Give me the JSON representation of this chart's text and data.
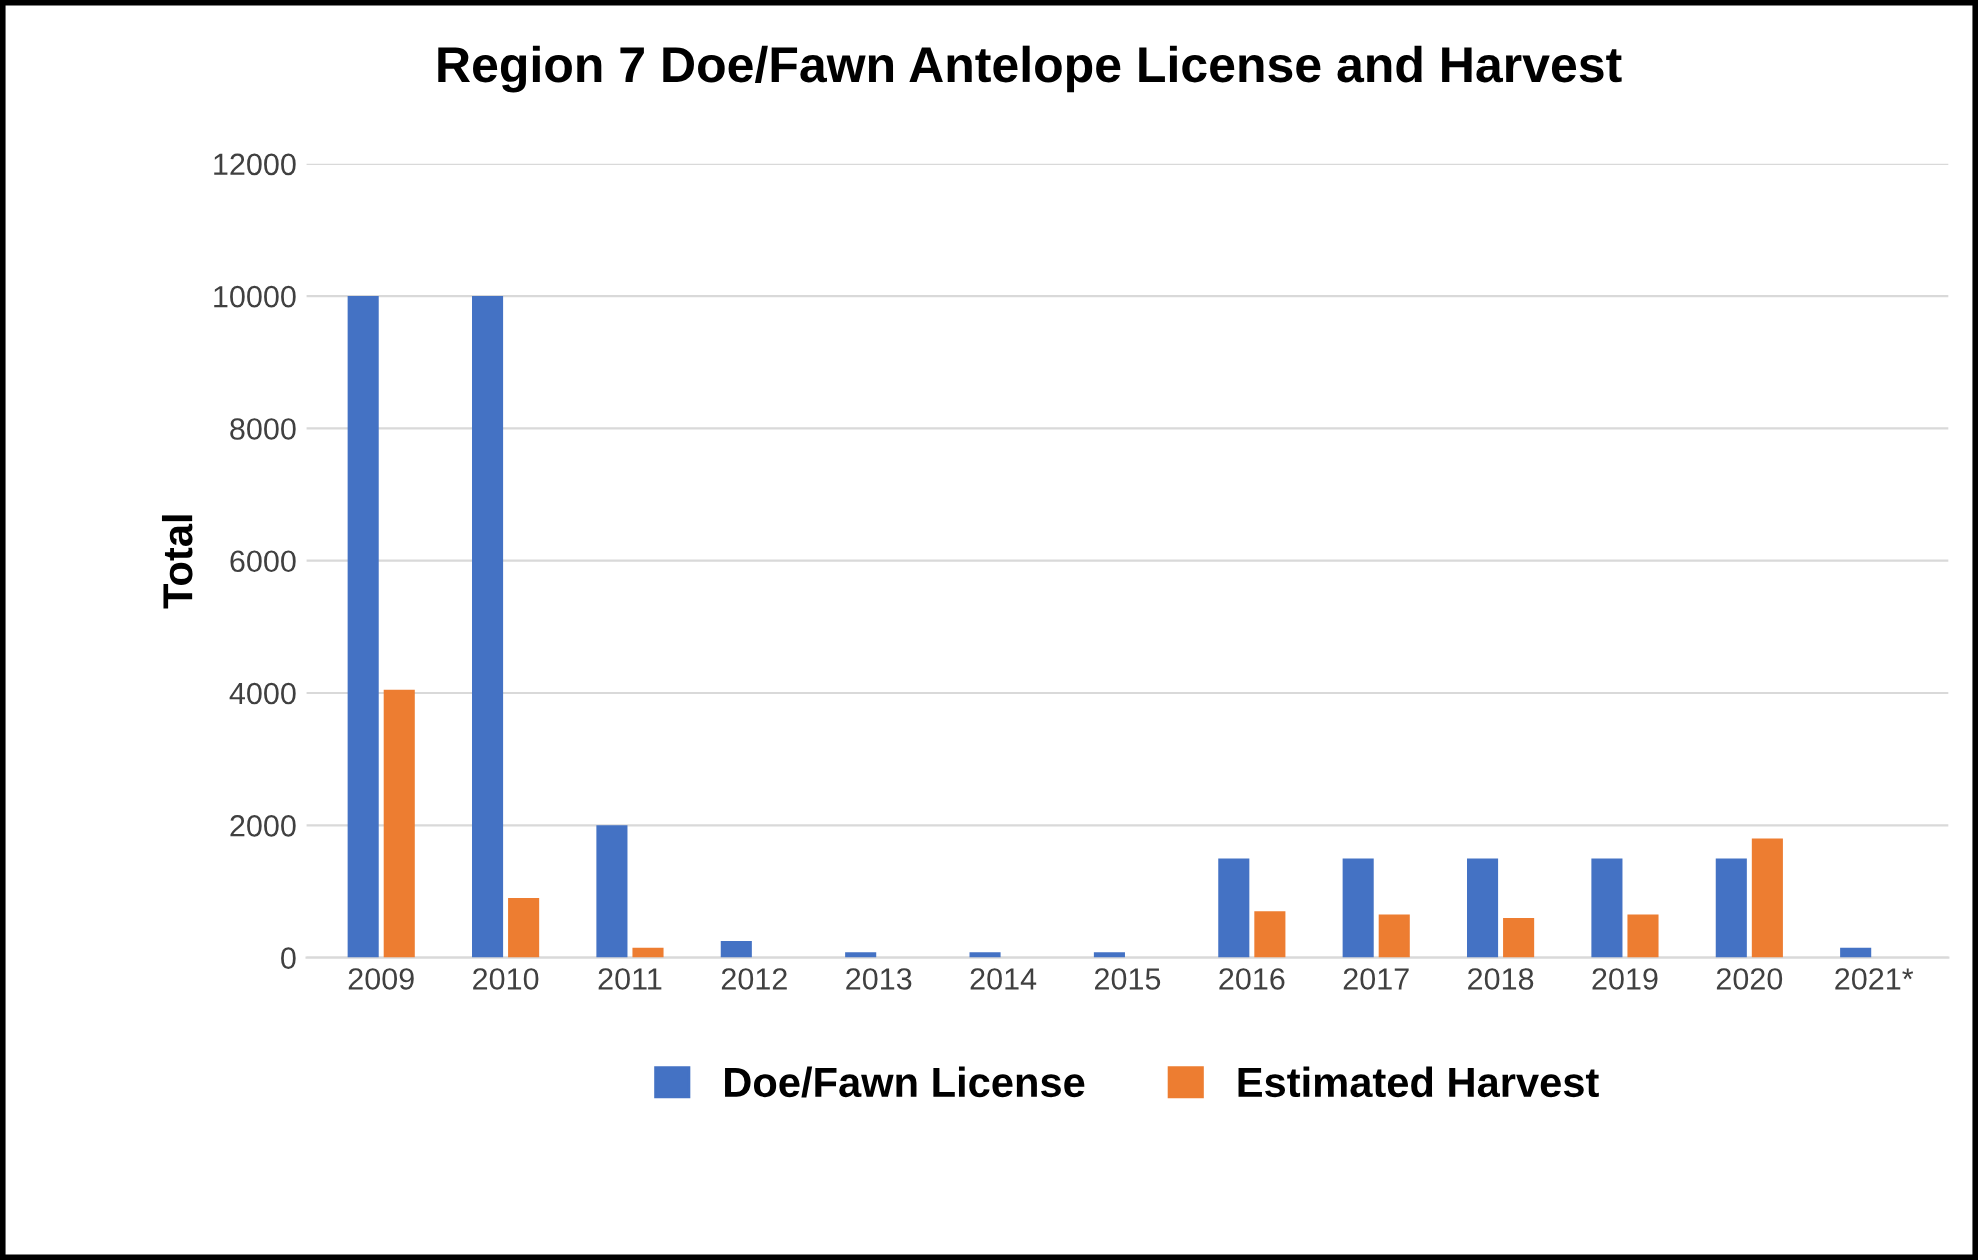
{
  "chart_data": {
    "type": "bar",
    "title": "Region 7 Doe/Fawn Antelope License and Harvest",
    "ylabel": "Total",
    "categories": [
      "2009",
      "2010",
      "2011",
      "2012",
      "2013",
      "2014",
      "2015",
      "2016",
      "2017",
      "2018",
      "2019",
      "2020",
      "2021*"
    ],
    "series": [
      {
        "name": "Doe/Fawn License",
        "color": "#4472c4",
        "values": [
          10000,
          10000,
          2000,
          250,
          80,
          80,
          80,
          1500,
          1500,
          1500,
          1500,
          1500,
          150
        ]
      },
      {
        "name": "Estimated Harvest",
        "color": "#ed7d31",
        "values": [
          4050,
          900,
          150,
          0,
          0,
          0,
          0,
          700,
          650,
          600,
          650,
          1800,
          null
        ]
      }
    ],
    "ylim": [
      0,
      12000
    ],
    "yticks": [
      0,
      2000,
      4000,
      6000,
      8000,
      10000,
      12000
    ],
    "grid": "y",
    "legend": "bottom"
  }
}
